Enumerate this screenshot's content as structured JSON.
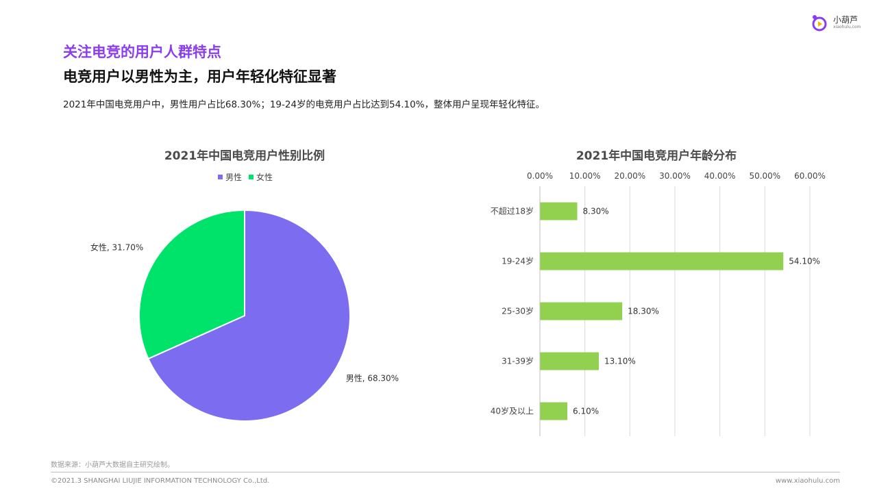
{
  "header": {
    "section_title": "关注电竞的用户人群特点",
    "headline": "电竞用户以男性为主，用户年轻化特征显著",
    "summary": "2021年中国电竞用户中，男性用户占比68.30%；19-24岁的电竞用户占比达到54.10%，整体用户呈现年轻化特征。"
  },
  "logo": {
    "name": "小葫芦",
    "sub": "xiaohulu.com",
    "brand_color": "#8b3cf0"
  },
  "footer": {
    "source": "数据来源：小葫芦大数据自主研究绘制。",
    "copyright": "©2021.3 SHANGHAI LIUJIE INFORMATION  TECHNOLOGY Co.,Ltd.",
    "website": "www.xiaohulu.com"
  },
  "chart_data": [
    {
      "type": "pie",
      "title": "2021年中国电竞用户性别比例",
      "legend_position": "top",
      "slices": [
        {
          "name": "男性",
          "value": 68.3,
          "label": "男性, 68.30%",
          "color": "#7b6cf0"
        },
        {
          "name": "女性",
          "value": 31.7,
          "label": "女性, 31.70%",
          "color": "#00e36a"
        }
      ]
    },
    {
      "type": "bar",
      "orientation": "horizontal",
      "title": "2021年中国电竞用户年龄分布",
      "categories": [
        "不超过18岁",
        "19-24岁",
        "25-30岁",
        "31-39岁",
        "40岁及以上"
      ],
      "values": [
        8.3,
        54.1,
        18.3,
        13.1,
        6.1
      ],
      "value_labels": [
        "8.30%",
        "54.10%",
        "18.30%",
        "13.10%",
        "6.10%"
      ],
      "xlim": [
        0,
        60
      ],
      "ticks": [
        "0.00%",
        "10.00%",
        "20.00%",
        "30.00%",
        "40.00%",
        "50.00%",
        "60.00%"
      ],
      "axis_position": "top",
      "grid": true,
      "color": "#92d050"
    }
  ]
}
